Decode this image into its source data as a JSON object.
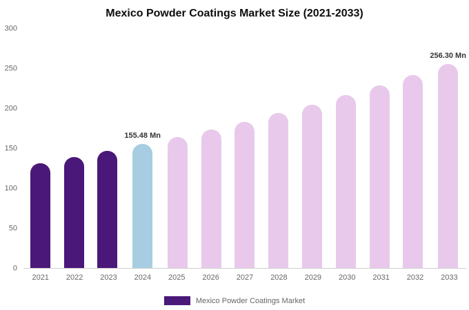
{
  "title": "Mexico Powder Coatings Market Size (2021-2033)",
  "legend": {
    "label": "Mexico Powder Coatings Market",
    "swatch_color": "#4a1879"
  },
  "chart_data": {
    "type": "bar",
    "title": "Mexico Powder Coatings Market Size (2021-2033)",
    "xlabel": "",
    "ylabel": "",
    "ylim": [
      0,
      300
    ],
    "yticks": [
      0,
      50,
      100,
      150,
      200,
      250,
      300
    ],
    "grid": false,
    "legend_position": "bottom",
    "categories": [
      "2021",
      "2022",
      "2023",
      "2024",
      "2025",
      "2026",
      "2027",
      "2028",
      "2029",
      "2030",
      "2031",
      "2032",
      "2033"
    ],
    "values": [
      131.6,
      139.2,
      147.1,
      155.48,
      164.4,
      173.8,
      183.7,
      194.2,
      205.3,
      217.0,
      229.4,
      242.5,
      256.3
    ],
    "bar_colors": [
      "#4a1879",
      "#4a1879",
      "#4a1879",
      "#a6cde2",
      "#e8c9eb",
      "#e8c9eb",
      "#e8c9eb",
      "#e8c9eb",
      "#e8c9eb",
      "#e8c9eb",
      "#e8c9eb",
      "#e8c9eb",
      "#e8c9eb"
    ],
    "series_colors": {
      "historical": "#4a1879",
      "current_year": "#a6cde2",
      "forecast": "#e8c9eb"
    },
    "annotations": [
      {
        "category": "2024",
        "text": "155.48 Mn"
      },
      {
        "category": "2033",
        "text": "256.30 Mn"
      }
    ]
  }
}
